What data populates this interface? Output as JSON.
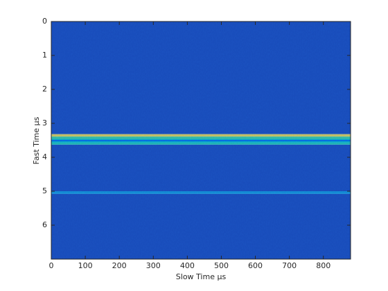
{
  "chart_data": {
    "type": "heatmap",
    "xlabel": "Slow Time μs",
    "ylabel": "Fast Time μs",
    "xlim": [
      0,
      880
    ],
    "xticks": [
      0,
      100,
      200,
      300,
      400,
      500,
      600,
      700,
      800
    ],
    "ylim": [
      0,
      7
    ],
    "yticks": [
      0,
      1,
      2,
      3,
      4,
      5,
      6
    ],
    "y_reversed": true,
    "y_edges": [
      0,
      3.32,
      3.39,
      3.46,
      3.49,
      3.53,
      3.57,
      3.63,
      5.0,
      5.08,
      7.0
    ],
    "values": [
      0.08,
      0.8,
      0.55,
      0.42,
      0.15,
      0.42,
      0.5,
      0.08,
      0.3,
      0.08
    ],
    "clim": [
      0,
      1
    ],
    "colormap": "parula"
  }
}
